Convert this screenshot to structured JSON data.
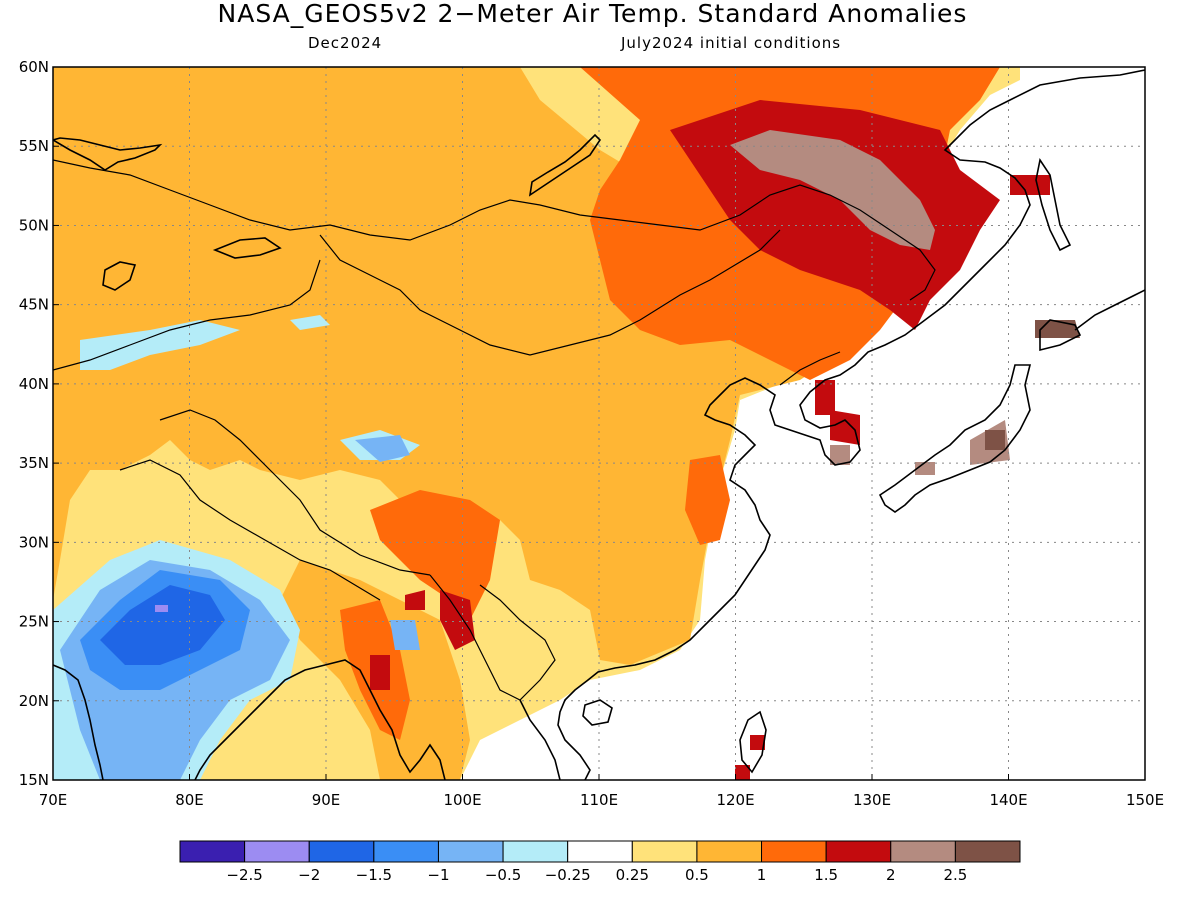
{
  "header": {
    "title": "NASA_GEOS5v2 2−Meter Air Temp. Standard Anomalies",
    "subtitle_left": "Dec2024",
    "subtitle_right": "July2024 initial conditions"
  },
  "map": {
    "lon_range": [
      70,
      150
    ],
    "lat_range": [
      15,
      60
    ],
    "lon_ticks": [
      {
        "value": 70,
        "label": "70E"
      },
      {
        "value": 80,
        "label": "80E"
      },
      {
        "value": 90,
        "label": "90E"
      },
      {
        "value": 100,
        "label": "100E"
      },
      {
        "value": 110,
        "label": "110E"
      },
      {
        "value": 120,
        "label": "120E"
      },
      {
        "value": 130,
        "label": "130E"
      },
      {
        "value": 140,
        "label": "140E"
      },
      {
        "value": 150,
        "label": "150E"
      }
    ],
    "lat_ticks": [
      {
        "value": 15,
        "label": "15N"
      },
      {
        "value": 20,
        "label": "20N"
      },
      {
        "value": 25,
        "label": "25N"
      },
      {
        "value": 30,
        "label": "30N"
      },
      {
        "value": 35,
        "label": "35N"
      },
      {
        "value": 40,
        "label": "40N"
      },
      {
        "value": 45,
        "label": "45N"
      },
      {
        "value": 50,
        "label": "50N"
      },
      {
        "value": 55,
        "label": "55N"
      },
      {
        "value": 60,
        "label": "60N"
      }
    ],
    "gridlines": true
  },
  "colorbar": {
    "colors": [
      "#3a1fb0",
      "#9c8cf2",
      "#1f66e6",
      "#3a8ef5",
      "#76b4f5",
      "#b4ecf8",
      "#ffffff",
      "#ffe27a",
      "#ffb634",
      "#ff6a0a",
      "#c30b0e",
      "#b48b80",
      "#7e5246"
    ],
    "labels": [
      "−2.5",
      "−2",
      "−1.5",
      "−1",
      "−0.5",
      "−0.25",
      "0.25",
      "0.5",
      "1",
      "1.5",
      "2",
      "2.5"
    ]
  }
}
